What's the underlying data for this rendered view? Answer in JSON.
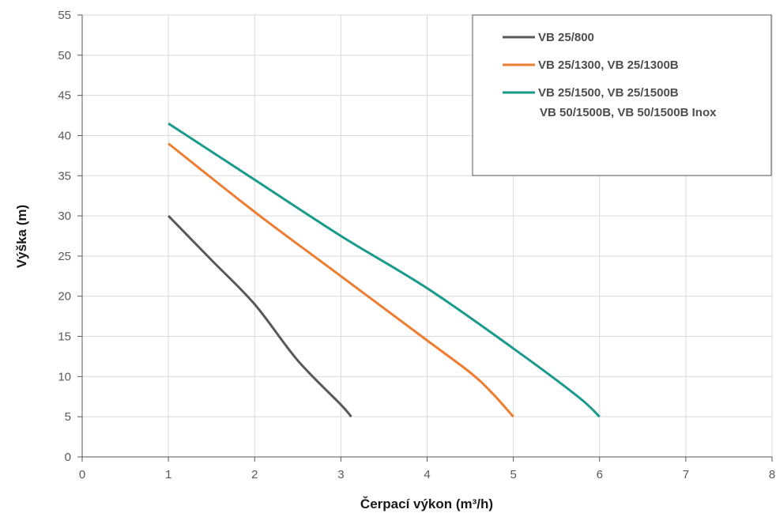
{
  "chart_data": {
    "type": "line",
    "xlabel": "Čerpací výkon (m³/h)",
    "ylabel": "Výška (m)",
    "xlim": [
      0,
      8
    ],
    "ylim": [
      0,
      55
    ],
    "x_ticks": [
      "0",
      "1",
      "2",
      "3",
      "4",
      "5",
      "6",
      "7",
      "8"
    ],
    "y_ticks": [
      "0",
      "5",
      "10",
      "15",
      "20",
      "25",
      "30",
      "35",
      "40",
      "45",
      "50",
      "55"
    ],
    "grid": true,
    "legend_position": "top-right",
    "series": [
      {
        "name": "VB 25/800",
        "color": "#595959",
        "x": [
          1,
          1.5,
          2,
          2.5,
          3,
          3.12
        ],
        "y": [
          30,
          24.5,
          19,
          12,
          6.5,
          5
        ]
      },
      {
        "name": "VB 25/1300, VB 25/1300B",
        "color": "#ed7d31",
        "x": [
          1,
          2,
          3,
          4,
          4.5,
          4.75,
          5
        ],
        "y": [
          39,
          30.5,
          22.5,
          14.5,
          10.5,
          8,
          5
        ]
      },
      {
        "name": "VB 25/1500, VB 25/1500B",
        "name_line2": "VB 50/1500B, VB 50/1500B Inox",
        "color": "#1a9a8a",
        "x": [
          1,
          2,
          3,
          4,
          5,
          5.75,
          6
        ],
        "y": [
          41.5,
          34.5,
          27.5,
          21,
          13.5,
          7.5,
          5
        ]
      }
    ]
  }
}
